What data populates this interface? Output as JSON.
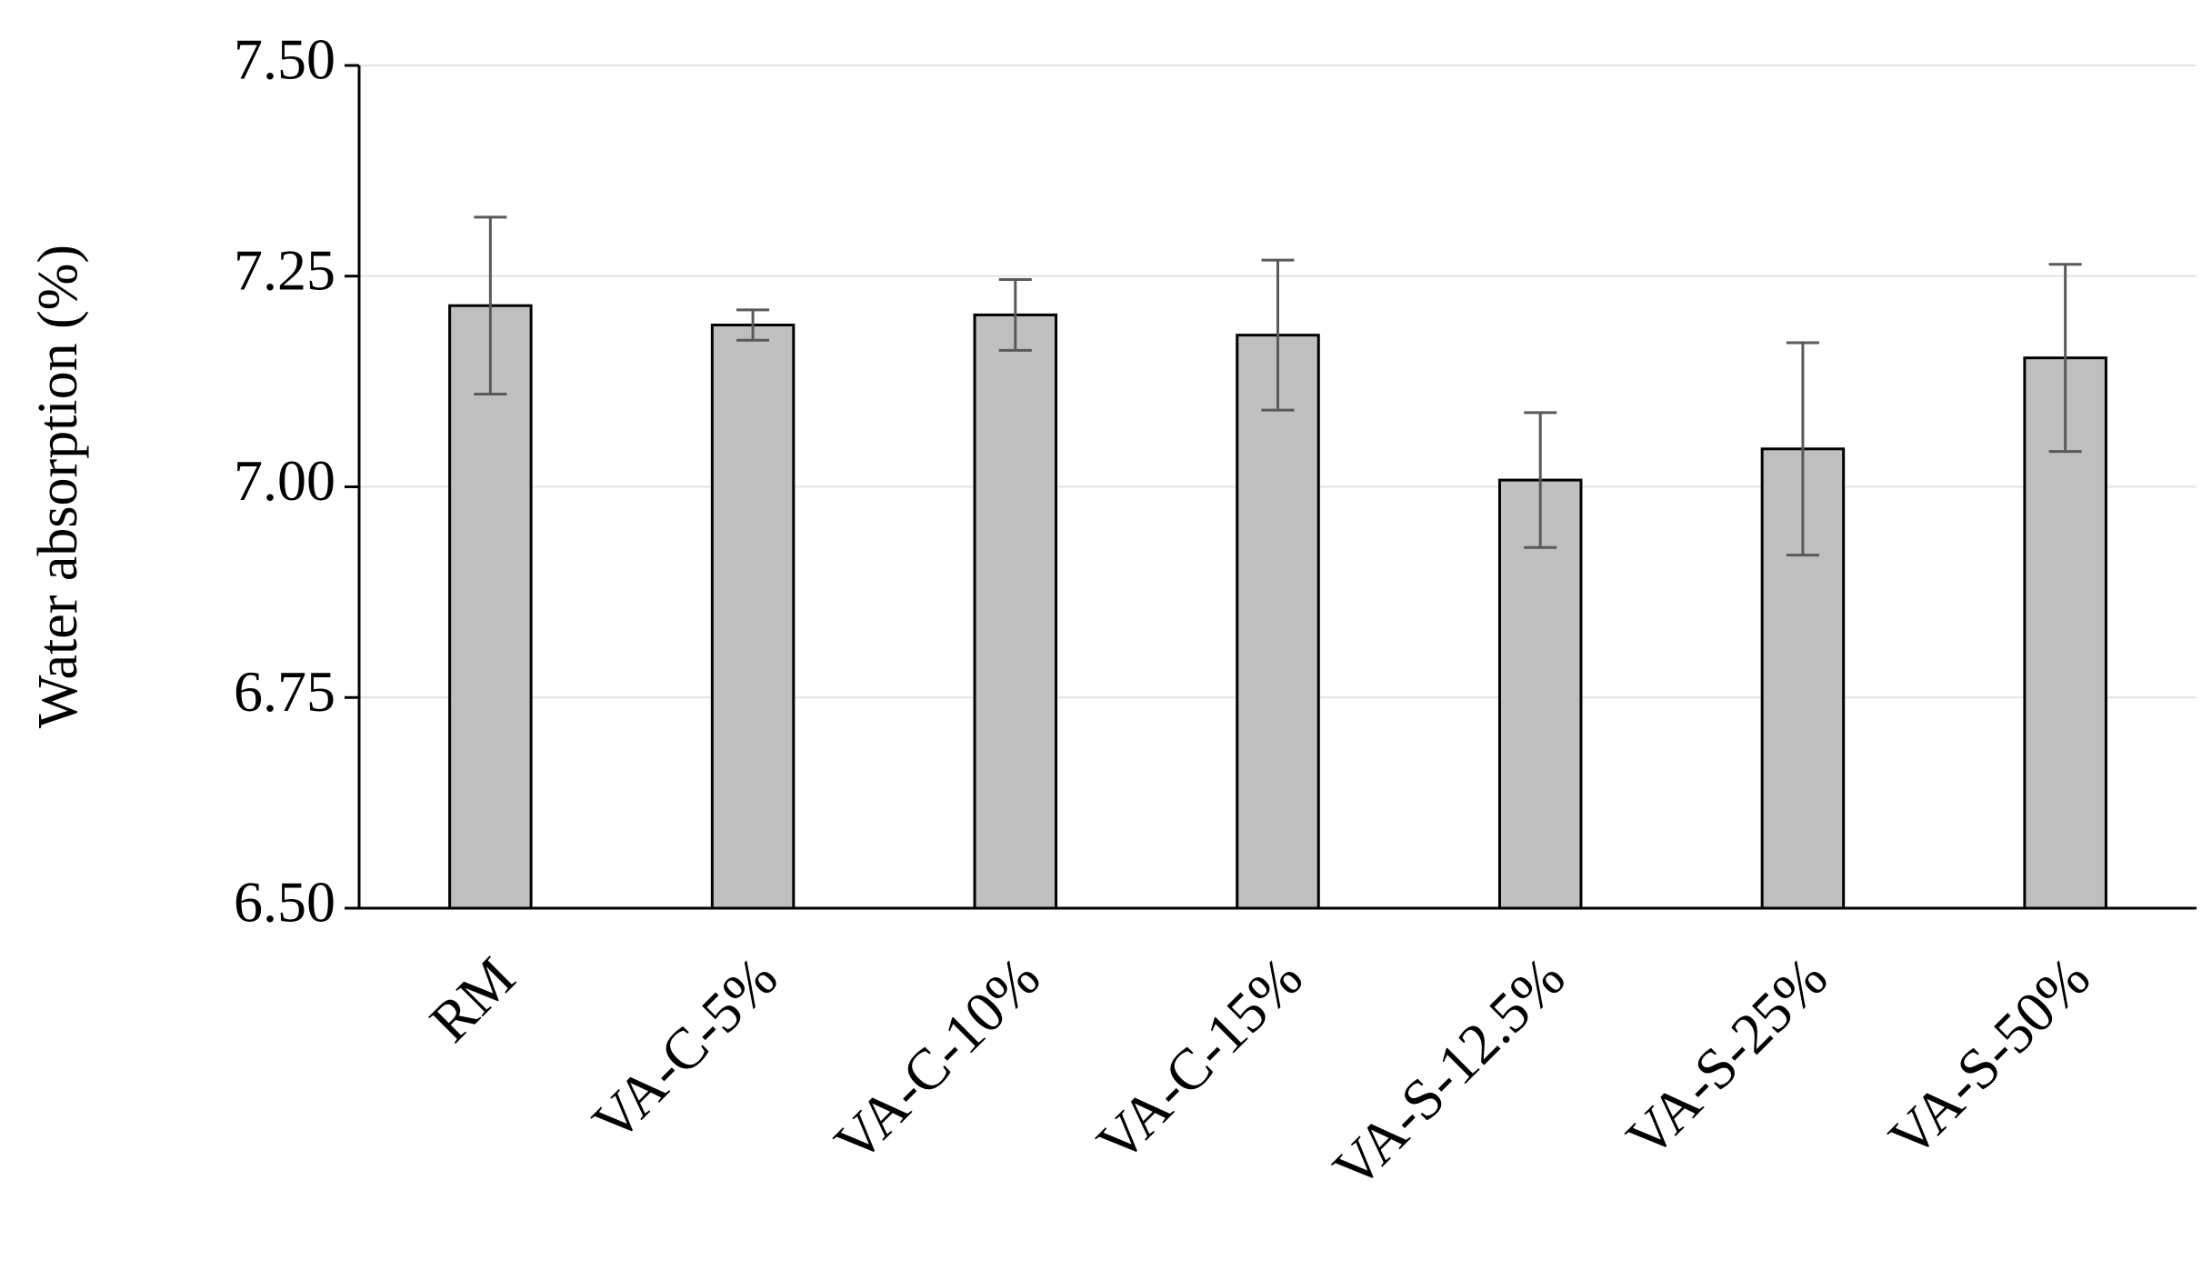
{
  "chart_data": {
    "type": "bar",
    "y_label": "Water absorption (%)",
    "categories": [
      "RM",
      "VA-C-5%",
      "VA-C-10%",
      "VA-C-15%",
      "VA-S-12.5%",
      "VA-S-25%",
      "VA-S-50%"
    ],
    "values": [
      7.215,
      7.192,
      7.204,
      7.18,
      7.008,
      7.045,
      7.153
    ],
    "errors": [
      0.105,
      0.018,
      0.042,
      0.089,
      0.08,
      0.126,
      0.111
    ],
    "color": "#bfbfbf",
    "ylim": [
      6.5,
      7.5
    ],
    "yticks": [
      {
        "value": 6.5,
        "label": "6.50"
      },
      {
        "value": 6.75,
        "label": "6.75"
      },
      {
        "value": 7.0,
        "label": "7.00"
      },
      {
        "value": 7.25,
        "label": "7.25"
      },
      {
        "value": 7.5,
        "label": "7.50"
      }
    ],
    "grid": true
  }
}
